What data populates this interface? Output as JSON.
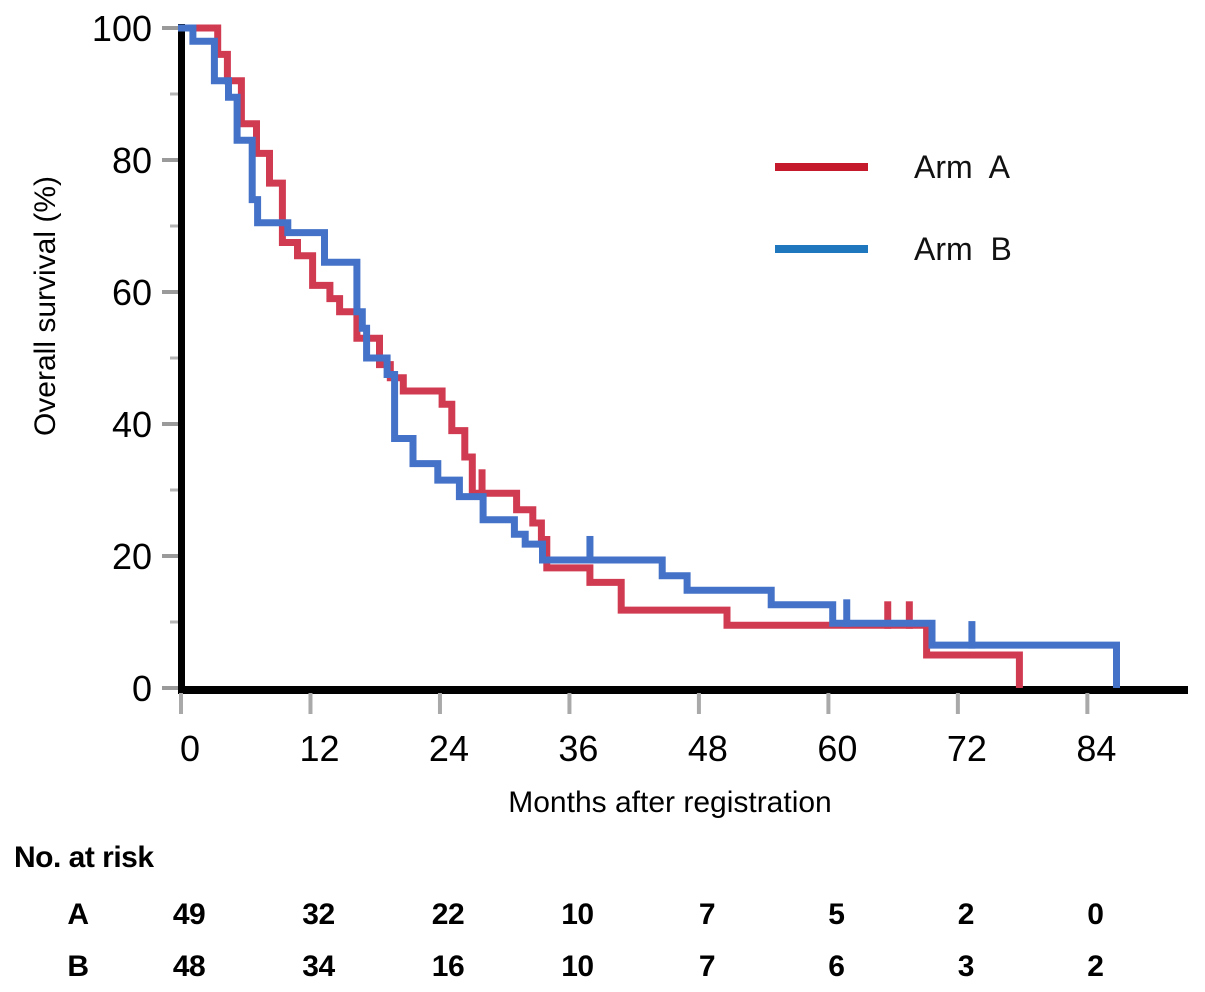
{
  "axes": {
    "x": {
      "label": "Months after registration",
      "ticks": [
        0,
        12,
        24,
        36,
        48,
        60,
        72,
        84
      ],
      "max": 93
    },
    "y": {
      "label": "Overall survival (%)",
      "ticks": [
        0,
        20,
        40,
        60,
        80,
        100
      ],
      "minor_ticks": [
        10,
        30,
        50,
        70,
        90
      ]
    }
  },
  "legend": {
    "items": [
      {
        "label": "Arm  A",
        "color": "#c41a2b",
        "series": "arm_a"
      },
      {
        "label": "Arm  B",
        "color": "#1f78be",
        "series": "arm_b"
      }
    ]
  },
  "chart_data": {
    "type": "line",
    "variant": "kaplan_meier_step",
    "xlabel": "Months after registration",
    "ylabel": "Overall survival (%)",
    "xlim": [
      0,
      93
    ],
    "ylim": [
      0,
      100
    ],
    "grid": false,
    "legend_position": "upper right",
    "series": [
      {
        "name": "Arm A",
        "color": "#d13b52",
        "start": [
          0,
          100
        ],
        "steps": [
          [
            3.4,
            96
          ],
          [
            4.3,
            92
          ],
          [
            5.6,
            85.5
          ],
          [
            7,
            81
          ],
          [
            8.2,
            76.5
          ],
          [
            9.4,
            67.5
          ],
          [
            10.8,
            65.5
          ],
          [
            12.2,
            61
          ],
          [
            13.8,
            59
          ],
          [
            14.7,
            57
          ],
          [
            16.3,
            53
          ],
          [
            18.4,
            49
          ],
          [
            19.4,
            47
          ],
          [
            20.6,
            45
          ],
          [
            24.2,
            43
          ],
          [
            25.1,
            39
          ],
          [
            26.3,
            35
          ],
          [
            27,
            29.5
          ],
          [
            31.1,
            27
          ],
          [
            32.6,
            25
          ],
          [
            33.4,
            22.5
          ],
          [
            33.9,
            18.2
          ],
          [
            37.9,
            16
          ],
          [
            40.8,
            11.8
          ],
          [
            50.6,
            9.5
          ],
          [
            69.1,
            5
          ],
          [
            77.7,
            0
          ]
        ],
        "censor_marks": [
          [
            27.9,
            29.5
          ],
          [
            65.5,
            9.5
          ],
          [
            67.5,
            9.5
          ]
        ]
      },
      {
        "name": "Arm B",
        "color": "#4472c8",
        "start": [
          0,
          100
        ],
        "steps": [
          [
            1.1,
            98
          ],
          [
            3.1,
            92
          ],
          [
            4.4,
            89.5
          ],
          [
            5.2,
            83
          ],
          [
            6.6,
            74
          ],
          [
            7.1,
            70.5
          ],
          [
            9.9,
            69
          ],
          [
            13.3,
            64.5
          ],
          [
            16.3,
            57
          ],
          [
            16.8,
            54.5
          ],
          [
            17.2,
            50
          ],
          [
            19.1,
            47.5
          ],
          [
            19.8,
            37.8
          ],
          [
            21.5,
            34
          ],
          [
            23.8,
            31.5
          ],
          [
            25.8,
            29
          ],
          [
            28,
            25.5
          ],
          [
            30.9,
            23.3
          ],
          [
            31.9,
            21.8
          ],
          [
            33.5,
            19.4
          ],
          [
            44.6,
            17
          ],
          [
            46.9,
            14.8
          ],
          [
            54.7,
            12.6
          ],
          [
            60.4,
            9.8
          ],
          [
            69.6,
            6.5
          ],
          [
            86.7,
            0
          ]
        ],
        "censor_marks": [
          [
            37.9,
            19.4
          ],
          [
            61.7,
            9.8
          ],
          [
            73.3,
            6.5
          ]
        ]
      }
    ]
  },
  "risk_table": {
    "title": "No. at risk",
    "time_points": [
      0,
      12,
      24,
      36,
      48,
      60,
      72,
      84
    ],
    "rows": [
      {
        "label": "A",
        "counts": [
          "49",
          "32",
          "22",
          "10",
          "7",
          "5",
          "2",
          "0"
        ]
      },
      {
        "label": "B",
        "counts": [
          "48",
          "34",
          "16",
          "10",
          "7",
          "6",
          "3",
          "2"
        ]
      }
    ]
  }
}
